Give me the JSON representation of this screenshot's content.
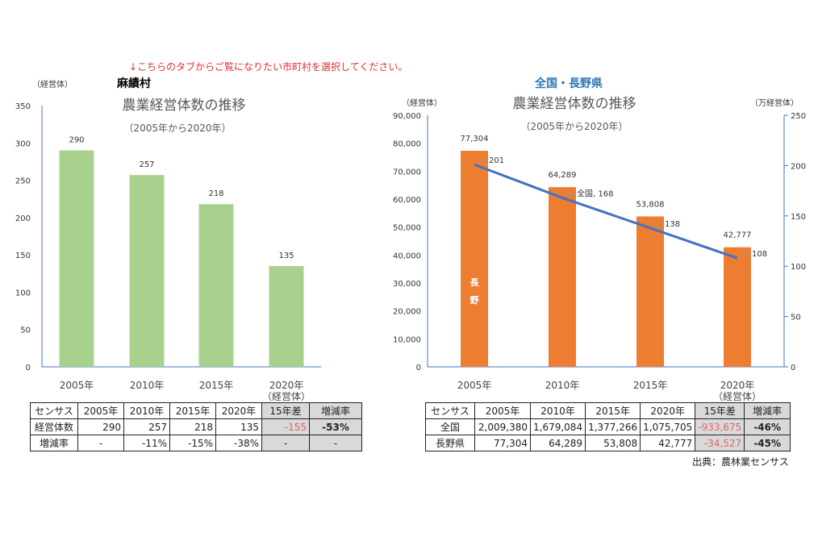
{
  "notice": "↓こちらのタブからご覧になりたい市町村を選択してください。",
  "colors": {
    "notice": "#e03030",
    "left_bar": "#a9d18e",
    "right_bar": "#ed7d31",
    "line": "#4472c4",
    "axis": "#4472c4",
    "region_title": "#2e75b6"
  },
  "chart_data": [
    {
      "type": "bar",
      "region": "麻績村",
      "title": "農業経営体数の推移",
      "subtitle": "（2005年から2020年）",
      "ylabel": "（経営体）",
      "xlabel": "（経営体）",
      "categories": [
        "2005年",
        "2010年",
        "2015年",
        "2020年"
      ],
      "values": [
        290,
        257,
        218,
        135
      ],
      "data_labels": [
        "290",
        "257",
        "218",
        "135"
      ],
      "ylim": [
        0,
        350
      ],
      "yticks": [
        "0",
        "50",
        "100",
        "150",
        "200",
        "250",
        "300",
        "350"
      ],
      "grid": false
    },
    {
      "type": "bar+line",
      "region": "全国・長野県",
      "title": "農業経営体数の推移",
      "subtitle": "（2005年から2020年）",
      "ylabel": "（経営体）",
      "y2label": "（万経営体）",
      "xlabel": "（経営体）",
      "categories": [
        "2005年",
        "2010年",
        "2015年",
        "2020年"
      ],
      "series": [
        {
          "name": "長野",
          "type": "bar",
          "axis": "left",
          "values": [
            77304,
            64289,
            53808,
            42777
          ],
          "data_labels": [
            "77,304",
            "64,289",
            "53,808",
            "42,777"
          ]
        },
        {
          "name": "全国",
          "type": "line",
          "axis": "right",
          "values": [
            201,
            168,
            138,
            108
          ],
          "data_labels": [
            "201",
            "全国, 168",
            "138",
            "108"
          ]
        }
      ],
      "bar_inner_label": [
        "長",
        "野"
      ],
      "ylim": [
        0,
        90000
      ],
      "yticks": [
        "0",
        "10,000",
        "20,000",
        "30,000",
        "40,000",
        "50,000",
        "60,000",
        "70,000",
        "80,000",
        "90,000"
      ],
      "y2lim": [
        0,
        250
      ],
      "y2ticks": [
        "0",
        "50",
        "100",
        "150",
        "200",
        "250"
      ],
      "grid": false
    }
  ],
  "left_table": {
    "header": [
      "センサス",
      "2005年",
      "2010年",
      "2015年",
      "2020年",
      "15年差",
      "増減率"
    ],
    "rows": [
      [
        "経営体数",
        "290",
        "257",
        "218",
        "135",
        "-155",
        "-53%"
      ],
      [
        "増減率",
        "-",
        "-11%",
        "-15%",
        "-38%",
        "-",
        "-"
      ]
    ]
  },
  "right_table": {
    "header": [
      "センサス",
      "2005年",
      "2010年",
      "2015年",
      "2020年",
      "15年差",
      "増減率"
    ],
    "rows": [
      [
        "全国",
        "2,009,380",
        "1,679,084",
        "1,377,266",
        "1,075,705",
        "-933,675",
        "-46%"
      ],
      [
        "長野県",
        "77,304",
        "64,289",
        "53,808",
        "42,777",
        "-34,527",
        "-45%"
      ]
    ]
  },
  "source": "出典：農林業センサス"
}
